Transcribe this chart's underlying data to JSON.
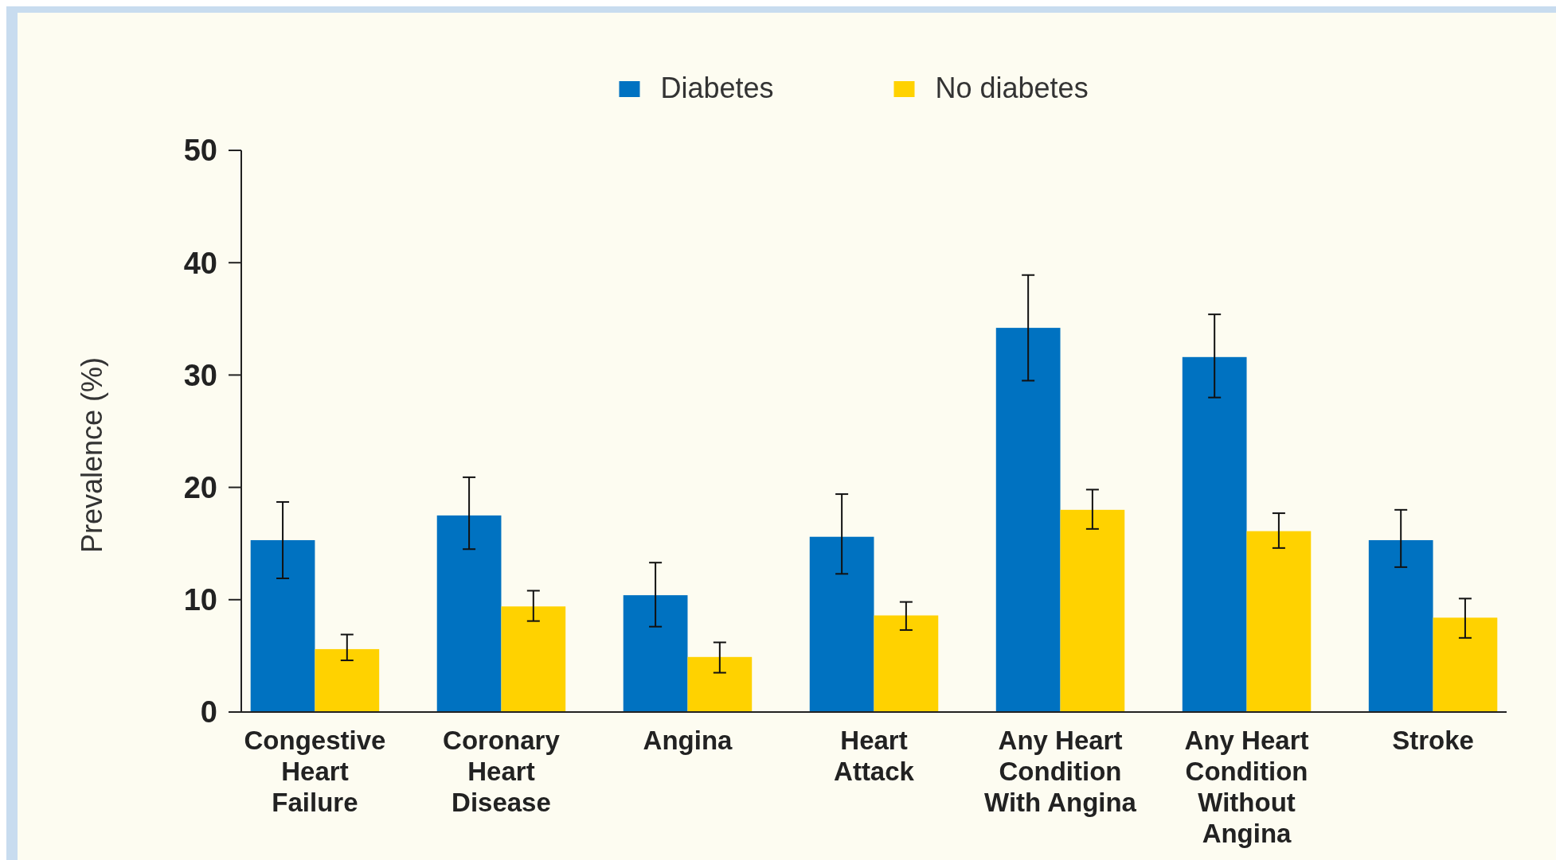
{
  "chart_data": {
    "type": "bar",
    "ylabel": "Prevalence (%)",
    "categories": [
      "Congestive Heart Failure",
      "Coronary Heart Disease",
      "Angina",
      "Heart Attack",
      "Any Heart Condition With Angina",
      "Any Heart Condition Without Angina",
      "Stroke"
    ],
    "series": [
      {
        "name": "Diabetes",
        "color": "#0072c1",
        "values": [
          15.3,
          17.5,
          10.4,
          15.6,
          34.2,
          31.6,
          15.3
        ],
        "errors": [
          [
            11.9,
            18.7
          ],
          [
            14.5,
            20.9
          ],
          [
            7.6,
            13.3
          ],
          [
            12.3,
            19.4
          ],
          [
            29.5,
            38.9
          ],
          [
            28.0,
            35.4
          ],
          [
            12.9,
            18.0
          ]
        ]
      },
      {
        "name": "No diabetes",
        "color": "#ffd200",
        "values": [
          5.6,
          9.4,
          4.9,
          8.6,
          18.0,
          16.1,
          8.4
        ],
        "errors": [
          [
            4.6,
            6.9
          ],
          [
            8.1,
            10.8
          ],
          [
            3.5,
            6.2
          ],
          [
            7.3,
            9.8
          ],
          [
            16.3,
            19.8
          ],
          [
            14.6,
            17.7
          ],
          [
            6.6,
            10.1
          ]
        ]
      }
    ],
    "ylim": [
      0,
      50
    ],
    "yticks": [
      0,
      10,
      20,
      30,
      40,
      50
    ],
    "grid": false,
    "legend": "top"
  }
}
